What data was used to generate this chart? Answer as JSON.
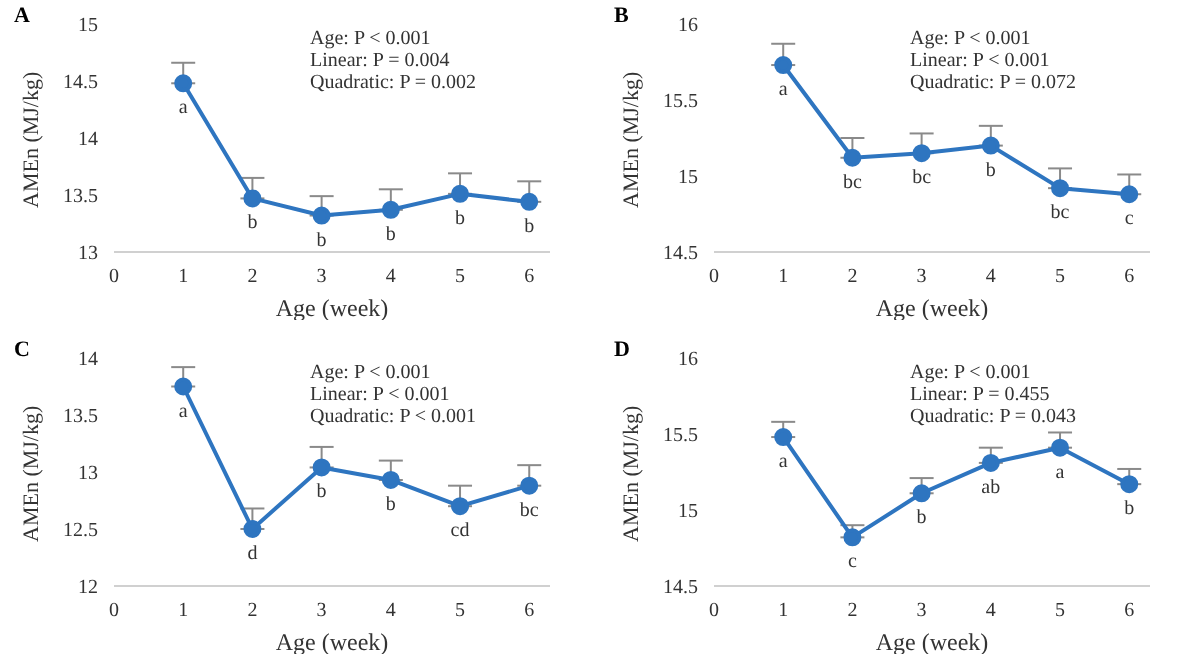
{
  "chart_data": [
    {
      "type": "line",
      "title": "A",
      "xlabel": "Age (week)",
      "ylabel": "AMEn (MJ/kg)",
      "x": [
        1,
        2,
        3,
        4,
        5,
        6
      ],
      "xlim": [
        0,
        6.3
      ],
      "xticks": [
        0,
        1,
        2,
        3,
        4,
        5,
        6
      ],
      "ylim": [
        13,
        15
      ],
      "yticks": [
        13,
        13.5,
        14,
        14.5,
        15
      ],
      "marker": "circle",
      "line_style": "solid",
      "series": [
        {
          "color": "#2e75c0",
          "values": [
            14.48,
            13.47,
            13.32,
            13.37,
            13.51,
            13.44
          ],
          "errors": [
            [
              14.48,
              14.66
            ],
            [
              13.47,
              13.65
            ],
            [
              13.32,
              13.49
            ],
            [
              13.37,
              13.55
            ],
            [
              13.51,
              13.69
            ],
            [
              13.44,
              13.62
            ]
          ]
        }
      ],
      "annotations": [
        "Age: P < 0.001",
        "Linear: P = 0.004",
        "Quadratic: P = 0.002",
        {
          "text": "a",
          "x": 1,
          "y": 14.48
        },
        {
          "text": "b",
          "x": 2,
          "y": 13.47
        },
        {
          "text": "b",
          "x": 3,
          "y": 13.32
        },
        {
          "text": "b",
          "x": 4,
          "y": 13.37
        },
        {
          "text": "b",
          "x": 5,
          "y": 13.51
        },
        {
          "text": "b",
          "x": 6,
          "y": 13.44
        }
      ]
    },
    {
      "type": "line",
      "title": "B",
      "xlabel": "Age (week)",
      "ylabel": "AMEn (MJ/kg)",
      "x": [
        1,
        2,
        3,
        4,
        5,
        6
      ],
      "xlim": [
        0,
        6.3
      ],
      "xticks": [
        0,
        1,
        2,
        3,
        4,
        5,
        6
      ],
      "ylim": [
        14.5,
        16
      ],
      "yticks": [
        14.5,
        15,
        15.5,
        16
      ],
      "marker": "circle",
      "line_style": "solid",
      "series": [
        {
          "color": "#2e75c0",
          "values": [
            15.73,
            15.12,
            15.15,
            15.2,
            14.92,
            14.88
          ],
          "errors": [
            [
              15.73,
              15.87
            ],
            [
              15.12,
              15.25
            ],
            [
              15.15,
              15.28
            ],
            [
              15.2,
              15.33
            ],
            [
              14.92,
              15.05
            ],
            [
              14.88,
              15.01
            ]
          ]
        }
      ],
      "annotations": [
        "Age: P < 0.001",
        "Linear: P < 0.001",
        "Quadratic: P = 0.072",
        {
          "text": "a",
          "x": 1,
          "y": 15.73
        },
        {
          "text": "bc",
          "x": 2,
          "y": 15.12
        },
        {
          "text": "bc",
          "x": 3,
          "y": 15.15
        },
        {
          "text": "b",
          "x": 4,
          "y": 15.2
        },
        {
          "text": "bc",
          "x": 5,
          "y": 14.92
        },
        {
          "text": "c",
          "x": 6,
          "y": 14.88
        }
      ]
    },
    {
      "type": "line",
      "title": "C",
      "xlabel": "Age (week)",
      "ylabel": "AMEn (MJ/kg)",
      "x": [
        1,
        2,
        3,
        4,
        5,
        6
      ],
      "xlim": [
        0,
        6.3
      ],
      "xticks": [
        0,
        1,
        2,
        3,
        4,
        5,
        6
      ],
      "ylim": [
        12,
        14
      ],
      "yticks": [
        12,
        12.5,
        13,
        13.5,
        14
      ],
      "marker": "circle",
      "line_style": "solid",
      "series": [
        {
          "color": "#2e75c0",
          "values": [
            13.75,
            12.5,
            13.04,
            12.93,
            12.7,
            12.88
          ],
          "errors": [
            [
              13.75,
              13.92
            ],
            [
              12.5,
              12.68
            ],
            [
              13.04,
              13.22
            ],
            [
              12.93,
              13.1
            ],
            [
              12.7,
              12.88
            ],
            [
              12.88,
              13.06
            ]
          ]
        }
      ],
      "annotations": [
        "Age: P < 0.001",
        "Linear: P < 0.001",
        "Quadratic: P < 0.001",
        {
          "text": "a",
          "x": 1,
          "y": 13.75
        },
        {
          "text": "d",
          "x": 2,
          "y": 12.5
        },
        {
          "text": "b",
          "x": 3,
          "y": 13.04
        },
        {
          "text": "b",
          "x": 4,
          "y": 12.93
        },
        {
          "text": "cd",
          "x": 5,
          "y": 12.7
        },
        {
          "text": "bc",
          "x": 6,
          "y": 12.88
        }
      ]
    },
    {
      "type": "line",
      "title": "D",
      "xlabel": "Age (week)",
      "ylabel": "AMEn (MJ/kg)",
      "x": [
        1,
        2,
        3,
        4,
        5,
        6
      ],
      "xlim": [
        0,
        6.3
      ],
      "xticks": [
        0,
        1,
        2,
        3,
        4,
        5,
        6
      ],
      "ylim": [
        14.5,
        16
      ],
      "yticks": [
        14.5,
        15,
        15.5,
        16
      ],
      "marker": "circle",
      "line_style": "solid",
      "series": [
        {
          "color": "#2e75c0",
          "values": [
            15.48,
            14.82,
            15.11,
            15.31,
            15.41,
            15.17
          ],
          "errors": [
            [
              15.48,
              15.58
            ],
            [
              14.82,
              14.9
            ],
            [
              15.11,
              15.21
            ],
            [
              15.31,
              15.41
            ],
            [
              15.41,
              15.51
            ],
            [
              15.17,
              15.27
            ]
          ]
        }
      ],
      "annotations": [
        "Age: P < 0.001",
        "Linear: P = 0.455",
        "Quadratic: P = 0.043",
        {
          "text": "a",
          "x": 1,
          "y": 15.48
        },
        {
          "text": "c",
          "x": 2,
          "y": 14.82
        },
        {
          "text": "b",
          "x": 3,
          "y": 15.11
        },
        {
          "text": "ab",
          "x": 4,
          "y": 15.31
        },
        {
          "text": "a",
          "x": 5,
          "y": 15.41
        },
        {
          "text": "b",
          "x": 6,
          "y": 15.17
        }
      ]
    }
  ]
}
